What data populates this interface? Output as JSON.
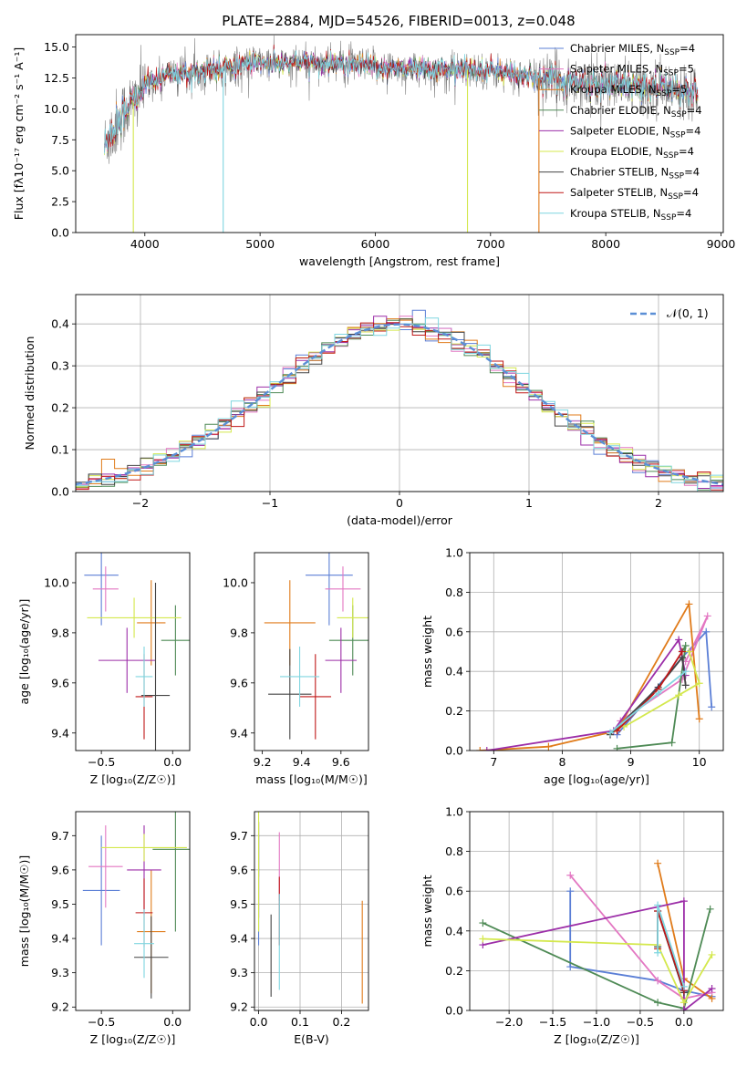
{
  "title": "PLATE=2884, MJD=54526, FIBERID=0013, z=0.048",
  "colors": {
    "chabrier_miles": "#5b7fd6",
    "salpeter_miles": "#e377c2",
    "kroupa_miles": "#e07b1a",
    "chabrier_elodie": "#4e8a55",
    "salpeter_elodie": "#9c2ea8",
    "kroupa_elodie": "#d4e84d",
    "chabrier_stelib": "#444444",
    "salpeter_stelib": "#c01818",
    "kroupa_stelib": "#7fd6e0",
    "data_grey": "#808080",
    "normal_curve": "#5b8fd6"
  },
  "chart_data": [
    {
      "id": "spectrum",
      "type": "line",
      "title": "PLATE=2884, MJD=54526, FIBERID=0013, z=0.048",
      "xlabel": "wavelength [Angstrom, rest frame]",
      "ylabel": "Flux [f",
      "ylabel_full": "Flux [fλ10⁻¹⁷ erg cm⁻² s⁻¹ A⁻¹]",
      "xlim": [
        3400,
        9020
      ],
      "ylim": [
        0,
        16
      ],
      "xticks": [
        4000,
        5000,
        6000,
        7000,
        8000,
        9000
      ],
      "yticks": [
        0.0,
        2.5,
        5.0,
        7.5,
        10.0,
        12.5,
        15.0
      ],
      "legend_position": "top-right",
      "legend": [
        "Chabrier MILES, NSSP=4",
        "Salpeter MILES, NSSP=5",
        "Kroupa MILES, NSSP=5",
        "Chabrier ELODIE, NSSP=4",
        "Salpeter ELODIE, NSSP=4",
        "Kroupa ELODIE, NSSP=4",
        "Chabrier STELIB, NSSP=4",
        "Salpeter STELIB, NSSP=4",
        "Kroupa STELIB, NSSP=4"
      ],
      "legend_text": [
        "Chabrier MILES, N<sub>SSP</sub>=4",
        "Salpeter MILES, N<sub>SSP</sub>=5",
        "Kroupa MILES, N<sub>SSP</sub>=5",
        "Chabrier ELODIE, N<sub>SSP</sub>=4",
        "Salpeter ELODIE, N<sub>SSP</sub>=4",
        "Kroupa ELODIE, N<sub>SSP</sub>=4",
        "Chabrier STELIB, N<sub>SSP</sub>=4",
        "Salpeter STELIB, N<sub>SSP</sub>=4",
        "Kroupa STELIB, N<sub>SSP</sub>=4"
      ],
      "continuum": {
        "x": [
          3650,
          3700,
          3800,
          3900,
          4000,
          4200,
          4400,
          4600,
          4800,
          5000,
          5200,
          5500,
          6000,
          6500,
          7000,
          7300,
          7500,
          8000,
          8500,
          8800
        ],
        "y": [
          7.0,
          8.0,
          9.5,
          10.5,
          12.0,
          12.8,
          13.0,
          13.3,
          13.6,
          13.7,
          13.6,
          13.8,
          13.4,
          13.2,
          13.1,
          12.6,
          12.4,
          12.0,
          11.7,
          11.6
        ]
      },
      "spikes": [
        {
          "x": 3900,
          "y": 0
        },
        {
          "x": 4680,
          "y": 0
        },
        {
          "x": 6800,
          "y": 0
        },
        {
          "x": 7420,
          "y": 0
        }
      ]
    },
    {
      "id": "residual_histogram",
      "type": "line",
      "xlabel": "(data-model)/error",
      "ylabel": "Normed distribution",
      "xlim": [
        -2.5,
        2.5
      ],
      "ylim": [
        0,
        0.47
      ],
      "xticks": [
        -2,
        -1,
        0,
        1,
        2
      ],
      "yticks": [
        0.0,
        0.1,
        0.2,
        0.3,
        0.4
      ],
      "grid": true,
      "legend_position": "top-right",
      "legend": [
        "𝒩(0, 1)"
      ],
      "bins": {
        "start": -2.5,
        "width": 0.1,
        "count": 50
      }
    },
    {
      "id": "age_vs_Z",
      "type": "scatter",
      "xlabel": "Z [log₁₀(Z/Z☉)]",
      "ylabel": "age  [log₁₀(age/yr)]",
      "xlim": [
        -0.68,
        0.12
      ],
      "ylim": [
        9.33,
        10.12
      ],
      "xticks": [
        -0.5,
        0.0
      ],
      "xtick_labels": [
        "−0.5",
        "0.0"
      ],
      "yticks": [
        9.4,
        9.6,
        9.8,
        10.0
      ],
      "points": [
        {
          "model": "chabrier_miles",
          "x": -0.5,
          "xerr": 0.12,
          "y": 10.03,
          "yerr": 0.2
        },
        {
          "model": "salpeter_miles",
          "x": -0.47,
          "xerr": 0.09,
          "y": 9.975,
          "yerr": 0.09
        },
        {
          "model": "kroupa_miles",
          "x": -0.15,
          "xerr": 0.1,
          "y": 9.84,
          "yerr": 0.17
        },
        {
          "model": "chabrier_elodie",
          "x": 0.02,
          "xerr": 0.1,
          "y": 9.77,
          "yerr": 0.14
        },
        {
          "model": "salpeter_elodie",
          "x": -0.32,
          "xerr": 0.2,
          "y": 9.69,
          "yerr": 0.13
        },
        {
          "model": "kroupa_elodie",
          "x": -0.27,
          "xerr": 0.33,
          "y": 9.86,
          "yerr": 0.08
        },
        {
          "model": "chabrier_stelib",
          "x": -0.12,
          "xerr": 0.1,
          "y": 9.55,
          "yerr": 0.45
        },
        {
          "model": "salpeter_stelib",
          "x": -0.2,
          "xerr": 0.06,
          "y": 9.545,
          "yerr": 0.17
        },
        {
          "model": "kroupa_stelib",
          "x": -0.2,
          "xerr": 0.06,
          "y": 9.625,
          "yerr": 0.12
        }
      ]
    },
    {
      "id": "age_vs_mass",
      "type": "scatter",
      "xlabel": "mass [log₁₀(M/M☉)]",
      "xlim": [
        9.16,
        9.74
      ],
      "ylim": [
        9.33,
        10.12
      ],
      "xticks": [
        9.2,
        9.4,
        9.6
      ],
      "yticks": [
        9.4,
        9.6,
        9.8,
        10.0
      ],
      "points": [
        {
          "model": "chabrier_miles",
          "x": 9.54,
          "xerr": 0.12,
          "y": 10.03,
          "yerr": 0.2
        },
        {
          "model": "salpeter_miles",
          "x": 9.61,
          "xerr": 0.09,
          "y": 9.975,
          "yerr": 0.09
        },
        {
          "model": "kroupa_miles",
          "x": 9.34,
          "xerr": 0.13,
          "y": 9.84,
          "yerr": 0.17
        },
        {
          "model": "chabrier_elodie",
          "x": 9.66,
          "xerr": 0.12,
          "y": 9.77,
          "yerr": 0.14
        },
        {
          "model": "salpeter_elodie",
          "x": 9.6,
          "xerr": 0.08,
          "y": 9.69,
          "yerr": 0.13
        },
        {
          "model": "kroupa_elodie",
          "x": 9.66,
          "xerr": 0.08,
          "y": 9.86,
          "yerr": 0.08
        },
        {
          "model": "chabrier_stelib",
          "x": 9.34,
          "xerr": 0.11,
          "y": 9.555,
          "yerr": 0.18
        },
        {
          "model": "salpeter_stelib",
          "x": 9.47,
          "xerr": 0.08,
          "y": 9.545,
          "yerr": 0.17
        },
        {
          "model": "kroupa_stelib",
          "x": 9.39,
          "xerr": 0.1,
          "y": 9.625,
          "yerr": 0.12
        }
      ]
    },
    {
      "id": "mass_weight_vs_age",
      "type": "line",
      "xlabel": "age  [log₁₀(age/yr)]",
      "ylabel": "mass weight",
      "xlim": [
        6.65,
        10.35
      ],
      "ylim": [
        0,
        1.0
      ],
      "xticks": [
        7,
        8,
        9,
        10
      ],
      "yticks": [
        0.0,
        0.2,
        0.4,
        0.6,
        0.8,
        1.0
      ],
      "grid": true,
      "series": [
        {
          "model": "chabrier_miles",
          "x": [
            8.8,
            9.75,
            10.1,
            10.18
          ],
          "y": [
            0.08,
            0.47,
            0.6,
            0.22
          ]
        },
        {
          "model": "salpeter_miles",
          "x": [
            8.85,
            9.75,
            10.12,
            9.8
          ],
          "y": [
            0.15,
            0.36,
            0.68,
            0.45
          ]
        },
        {
          "model": "kroupa_miles",
          "x": [
            6.8,
            7.8,
            8.8,
            9.85,
            10.0
          ],
          "y": [
            0.0,
            0.02,
            0.1,
            0.74,
            0.16
          ]
        },
        {
          "model": "chabrier_elodie",
          "x": [
            8.8,
            9.6,
            9.8,
            9.75
          ],
          "y": [
            0.01,
            0.04,
            0.53,
            0.5
          ]
        },
        {
          "model": "salpeter_elodie",
          "x": [
            6.9,
            8.75,
            9.7,
            9.8
          ],
          "y": [
            0.0,
            0.1,
            0.56,
            0.38
          ]
        },
        {
          "model": "kroupa_elodie",
          "x": [
            8.9,
            9.7,
            10.0,
            9.85
          ],
          "y": [
            0.12,
            0.28,
            0.34,
            0.5
          ]
        },
        {
          "model": "chabrier_stelib",
          "x": [
            8.7,
            9.4,
            9.75,
            9.8
          ],
          "y": [
            0.08,
            0.32,
            0.47,
            0.33
          ]
        },
        {
          "model": "salpeter_stelib",
          "x": [
            8.8,
            9.4,
            9.75
          ],
          "y": [
            0.1,
            0.31,
            0.5
          ]
        },
        {
          "model": "kroupa_stelib",
          "x": [
            8.7,
            9.4,
            9.8
          ],
          "y": [
            0.09,
            0.29,
            0.4
          ]
        }
      ]
    },
    {
      "id": "mass_vs_Z",
      "type": "scatter",
      "xlabel": "Z [log₁₀(Z/Z☉)]",
      "ylabel": "mass [log₁₀(M/M☉)]",
      "xlim": [
        -0.68,
        0.12
      ],
      "ylim": [
        9.19,
        9.77
      ],
      "xticks": [
        -0.5,
        0.0
      ],
      "xtick_labels": [
        "−0.5",
        "0.0"
      ],
      "yticks": [
        9.2,
        9.3,
        9.4,
        9.5,
        9.6,
        9.7
      ],
      "points": [
        {
          "model": "chabrier_miles",
          "x": -0.5,
          "xerr": 0.13,
          "y": 9.54,
          "yerr": 0.16
        },
        {
          "model": "salpeter_miles",
          "x": -0.47,
          "xerr": 0.12,
          "y": 9.61,
          "yerr": 0.12
        },
        {
          "model": "kroupa_miles",
          "x": -0.15,
          "xerr": 0.1,
          "y": 9.42,
          "yerr": 0.18
        },
        {
          "model": "chabrier_elodie",
          "x": 0.02,
          "xerr": 0.16,
          "y": 9.66,
          "yerr": 0.24
        },
        {
          "model": "salpeter_elodie",
          "x": -0.2,
          "xerr": 0.12,
          "y": 9.6,
          "yerr": 0.13
        },
        {
          "model": "kroupa_elodie",
          "x": -0.2,
          "xerr": 0.3,
          "y": 9.665,
          "yerr": 0.04
        },
        {
          "model": "chabrier_stelib",
          "x": -0.15,
          "xerr": 0.12,
          "y": 9.345,
          "yerr": 0.12
        },
        {
          "model": "salpeter_stelib",
          "x": -0.2,
          "xerr": 0.06,
          "y": 9.475,
          "yerr": 0.1
        },
        {
          "model": "kroupa_stelib",
          "x": -0.2,
          "xerr": 0.07,
          "y": 9.385,
          "yerr": 0.1
        }
      ]
    },
    {
      "id": "mass_vs_ebv",
      "type": "scatter",
      "xlabel": "E(B-V)",
      "xlim": [
        -0.01,
        0.265
      ],
      "ylim": [
        9.19,
        9.77
      ],
      "xticks": [
        0.0,
        0.1,
        0.2
      ],
      "xtick_labels": [
        "0.0",
        "0.1",
        "0.2"
      ],
      "yticks": [
        9.2,
        9.3,
        9.4,
        9.5,
        9.6,
        9.7
      ],
      "grid": true,
      "points": [
        {
          "model": "chabrier_miles",
          "x": 0.0,
          "y": 9.54,
          "yerr": 0.16
        },
        {
          "model": "salpeter_miles",
          "x": 0.05,
          "y": 9.61,
          "yerr": 0.1
        },
        {
          "model": "kroupa_miles",
          "x": 0.25,
          "y": 9.36,
          "yerr": 0.15
        },
        {
          "model": "chabrier_elodie",
          "x": 0.0,
          "y": 9.66,
          "yerr": 0.08
        },
        {
          "model": "salpeter_elodie",
          "x": 0.0,
          "y": 9.6,
          "yerr": 0.14
        },
        {
          "model": "kroupa_elodie",
          "x": 0.0,
          "y": 9.6,
          "yerr": 0.18
        },
        {
          "model": "chabrier_stelib",
          "x": 0.03,
          "y": 9.35,
          "yerr": 0.12
        },
        {
          "model": "salpeter_stelib",
          "x": 0.05,
          "y": 9.48,
          "yerr": 0.1
        },
        {
          "model": "kroupa_stelib",
          "x": 0.05,
          "y": 9.39,
          "yerr": 0.14
        }
      ]
    },
    {
      "id": "mass_weight_vs_Z",
      "type": "line",
      "xlabel": "Z [log₁₀(Z/Z☉)]",
      "ylabel": "mass weight",
      "xlim": [
        -2.45,
        0.45
      ],
      "ylim": [
        0,
        1.0
      ],
      "xticks": [
        -2.0,
        -1.5,
        -1.0,
        -0.5,
        0.0
      ],
      "xtick_labels": [
        "−2.0",
        "−1.5",
        "−1.0",
        "−0.5",
        "0.0"
      ],
      "yticks": [
        0.0,
        0.2,
        0.4,
        0.6,
        0.8,
        1.0
      ],
      "grid": true,
      "series": [
        {
          "model": "chabrier_miles",
          "x": [
            -1.3,
            -1.3,
            -0.3,
            0.0,
            0.32
          ],
          "y": [
            0.6,
            0.22,
            0.15,
            0.1,
            0.07
          ]
        },
        {
          "model": "salpeter_miles",
          "x": [
            -1.3,
            -0.3,
            0.0,
            0.32
          ],
          "y": [
            0.68,
            0.15,
            0.06,
            0.09
          ]
        },
        {
          "model": "kroupa_miles",
          "x": [
            -0.3,
            0.0,
            0.32
          ],
          "y": [
            0.74,
            0.16,
            0.06
          ]
        },
        {
          "model": "chabrier_elodie",
          "x": [
            -2.3,
            -0.3,
            0.0,
            0.3
          ],
          "y": [
            0.44,
            0.04,
            0.01,
            0.51
          ]
        },
        {
          "model": "salpeter_elodie",
          "x": [
            -2.3,
            0.0,
            0.0,
            0.32
          ],
          "y": [
            0.33,
            0.55,
            0.0,
            0.11
          ]
        },
        {
          "model": "kroupa_elodie",
          "x": [
            -2.3,
            -0.3,
            0.0,
            0.32
          ],
          "y": [
            0.36,
            0.33,
            0.04,
            0.28
          ]
        },
        {
          "model": "chabrier_stelib",
          "x": [
            -0.3,
            -0.3,
            0.0
          ],
          "y": [
            0.32,
            0.5,
            0.09
          ]
        },
        {
          "model": "salpeter_stelib",
          "x": [
            -0.3,
            -0.3,
            0.0
          ],
          "y": [
            0.31,
            0.5,
            0.1
          ]
        },
        {
          "model": "kroupa_stelib",
          "x": [
            -0.3,
            -0.3,
            0.0
          ],
          "y": [
            0.29,
            0.53,
            0.12
          ]
        }
      ]
    }
  ]
}
